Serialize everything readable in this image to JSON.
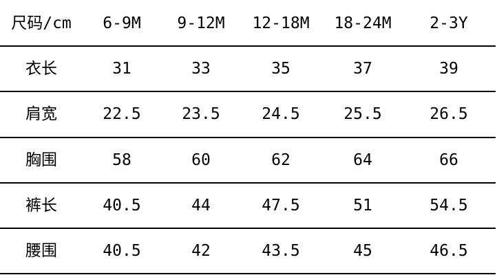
{
  "table": {
    "rows": [
      [
        "尺码/cm",
        "6-9M",
        "9-12M",
        "12-18M",
        "18-24M",
        "2-3Y"
      ],
      [
        "衣长",
        "31",
        "33",
        "35",
        "37",
        "39"
      ],
      [
        "肩宽",
        "22.5",
        "23.5",
        "24.5",
        "25.5",
        "26.5"
      ],
      [
        "胸围",
        "58",
        "60",
        "62",
        "64",
        "66"
      ],
      [
        "裤长",
        "40.5",
        "44",
        "47.5",
        "51",
        "54.5"
      ],
      [
        "腰围",
        "40.5",
        "42",
        "43.5",
        "45",
        "46.5"
      ]
    ]
  }
}
